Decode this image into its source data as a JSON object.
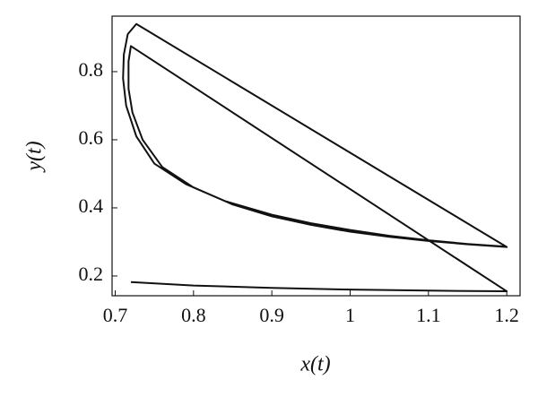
{
  "chart_data": {
    "type": "line",
    "xlabel": "x(t)",
    "ylabel": "y(t)",
    "xlim": [
      0.696,
      1.217
    ],
    "ylim": [
      0.142,
      0.963
    ],
    "xticks": [
      0.7,
      0.8,
      0.9,
      1,
      1.1,
      1.2
    ],
    "yticks": [
      0.2,
      0.4,
      0.6,
      0.8
    ],
    "grid": false,
    "series": [
      {
        "color": "#111111",
        "x": [
          0.72,
          0.8,
          0.9,
          1.0,
          1.1,
          1.2,
          0.72,
          0.717,
          0.717,
          0.722,
          0.735,
          0.76,
          0.8,
          0.85,
          0.9,
          0.95,
          1.0,
          1.05,
          1.1,
          1.15,
          1.2,
          0.727,
          0.716,
          0.711,
          0.71,
          0.714,
          0.727,
          0.75,
          0.79,
          0.84,
          0.9,
          0.95,
          1.0,
          1.05,
          1.1,
          1.15,
          1.2
        ],
        "values": [
          0.182,
          0.172,
          0.165,
          0.16,
          0.157,
          0.155,
          0.875,
          0.83,
          0.75,
          0.68,
          0.6,
          0.52,
          0.46,
          0.41,
          0.375,
          0.35,
          0.33,
          0.315,
          0.303,
          0.293,
          0.285,
          0.94,
          0.91,
          0.85,
          0.78,
          0.7,
          0.61,
          0.53,
          0.47,
          0.42,
          0.38,
          0.355,
          0.335,
          0.318,
          0.305,
          0.294,
          0.286
        ]
      }
    ]
  }
}
